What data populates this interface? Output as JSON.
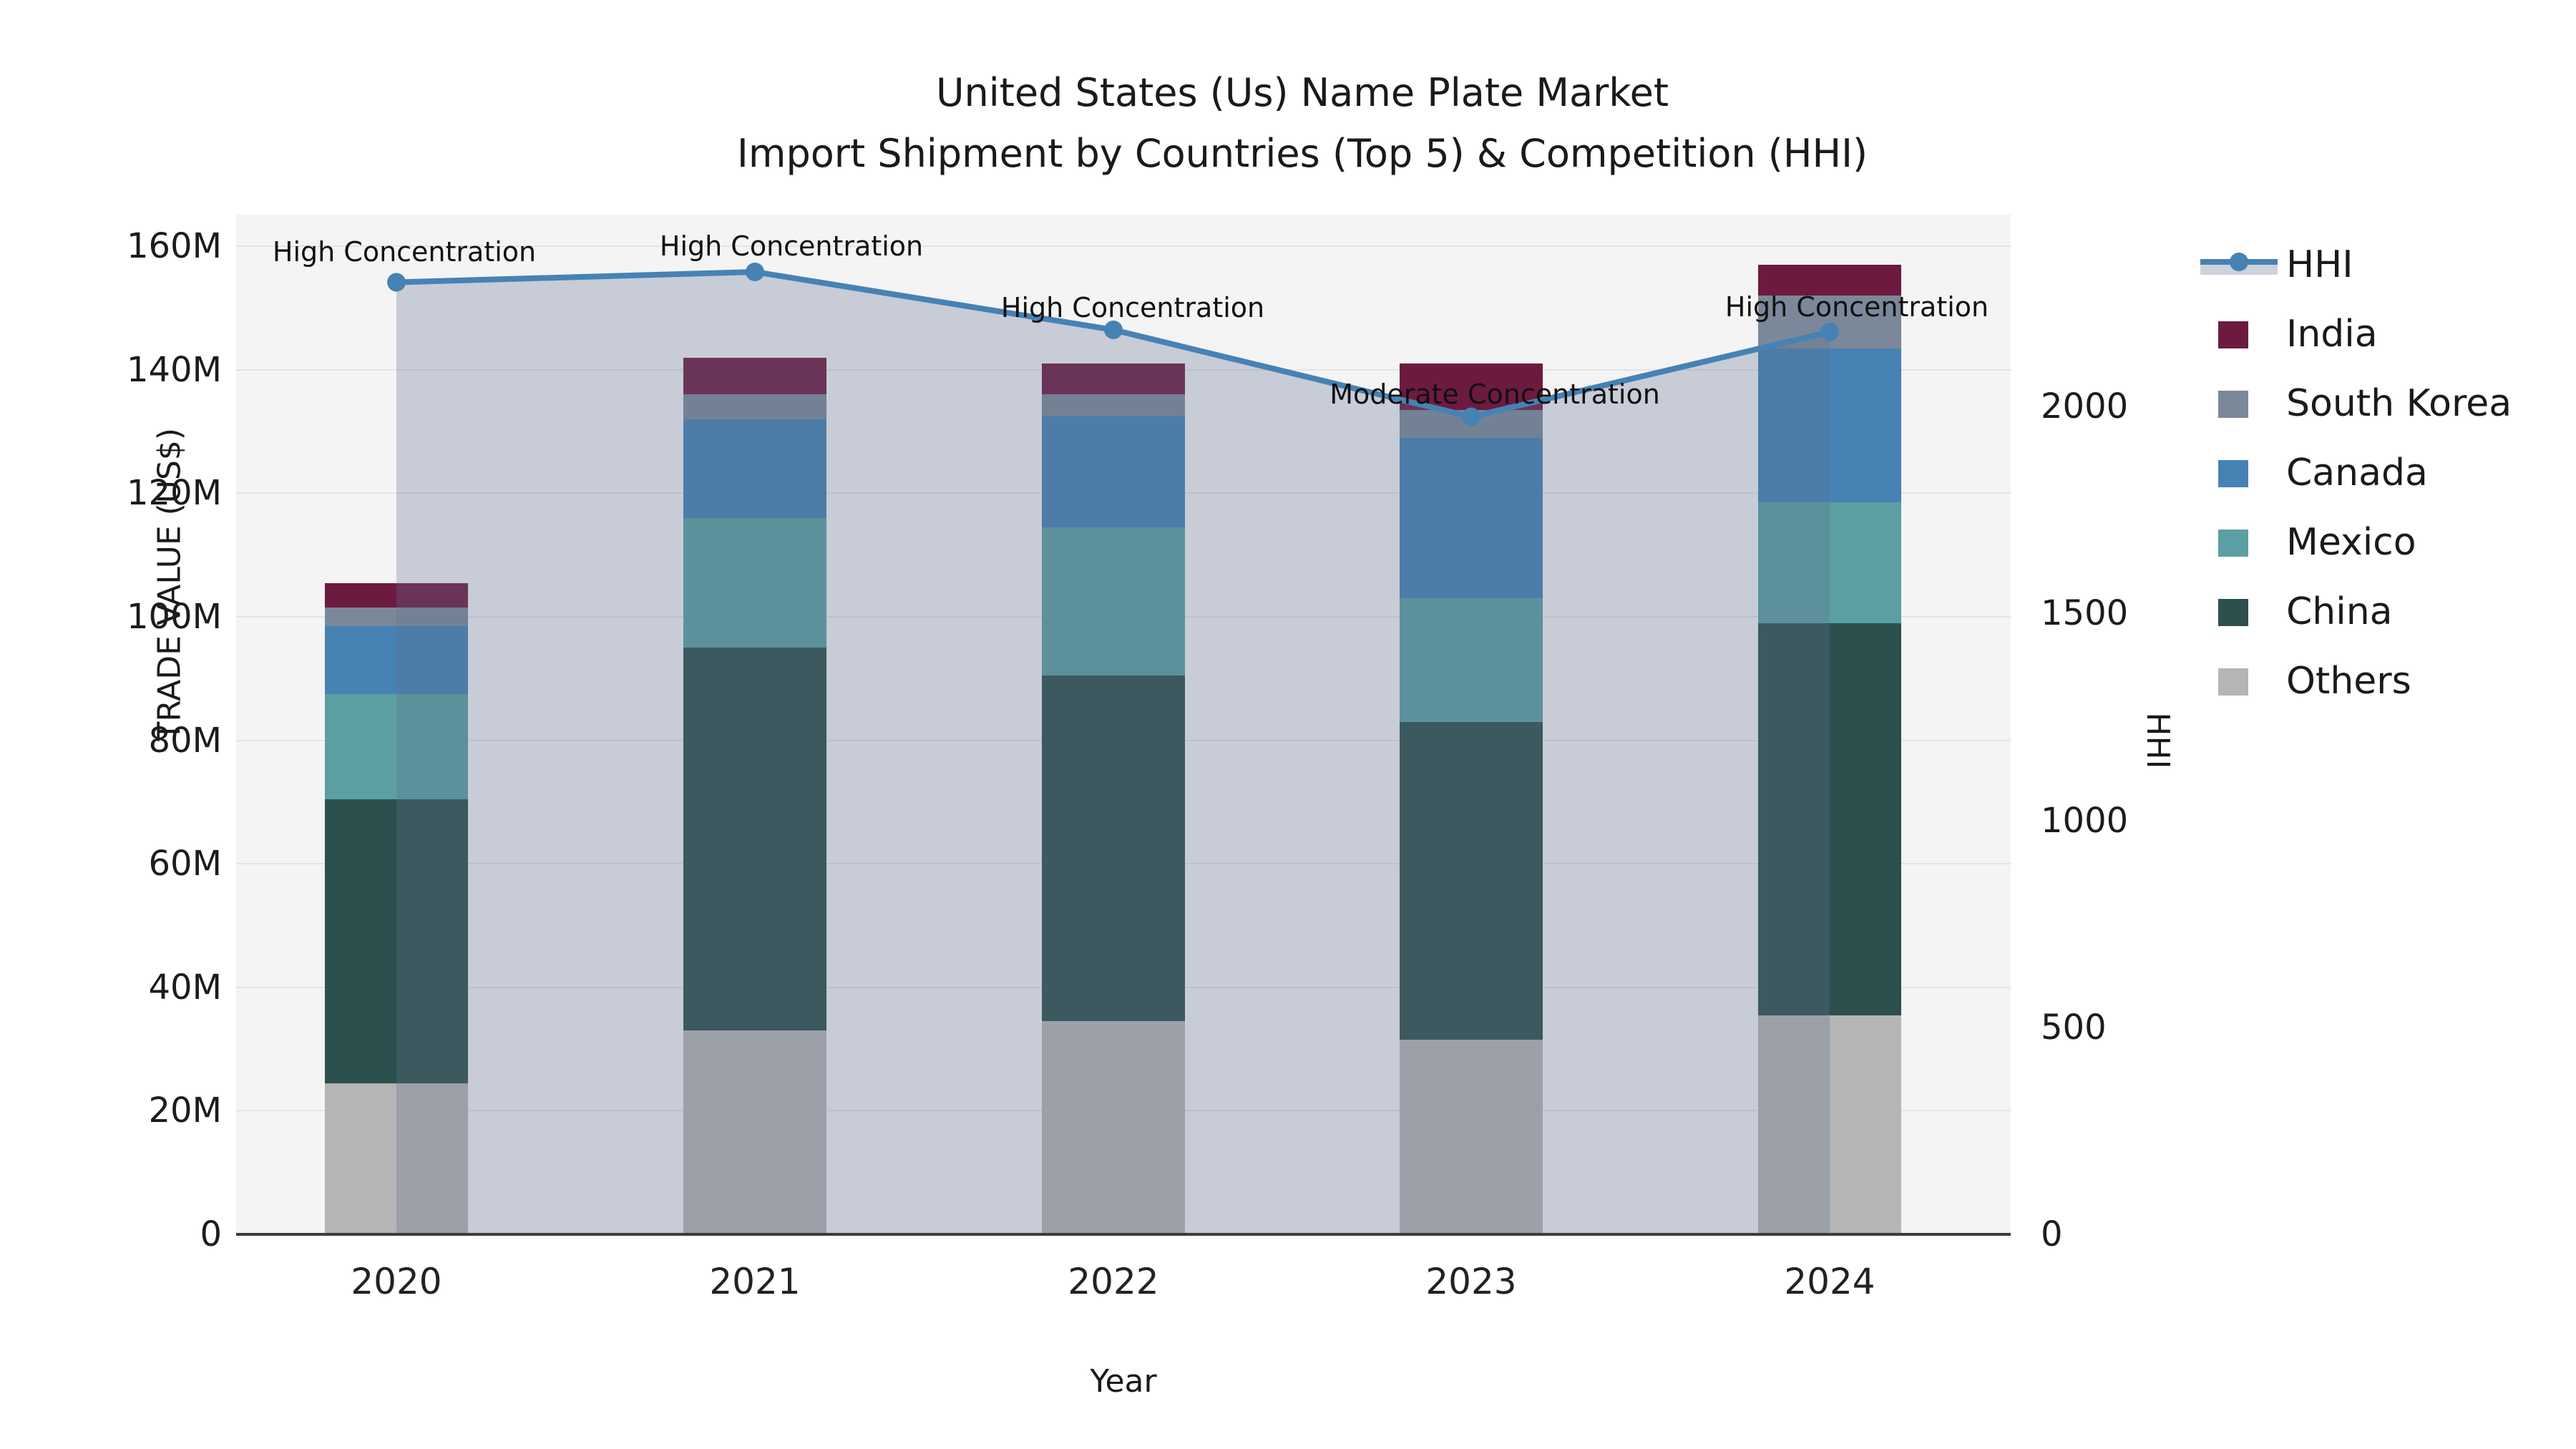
{
  "title": {
    "line1": "United States (Us) Name Plate Market",
    "line2": "Import Shipment by Countries (Top 5) & Competition (HHI)"
  },
  "axes": {
    "y_left": {
      "label": "TRADE VALUE (US$)",
      "ticks": [
        "0",
        "20M",
        "40M",
        "60M",
        "80M",
        "100M",
        "120M",
        "140M",
        "160M"
      ],
      "max_value_m": 165
    },
    "y_right": {
      "label": "HHI",
      "ticks": [
        "0",
        "500",
        "1000",
        "1500",
        "2000"
      ],
      "max_value": 2463
    },
    "x": {
      "label": "Year",
      "ticks": [
        "2020",
        "2021",
        "2022",
        "2023",
        "2024"
      ]
    }
  },
  "legend": {
    "items": [
      {
        "label": "HHI",
        "type": "line",
        "color": "#4682b4"
      },
      {
        "label": "India",
        "type": "patch",
        "color": "#6d1a41"
      },
      {
        "label": "South Korea",
        "type": "patch",
        "color": "#7b8899"
      },
      {
        "label": "Canada",
        "type": "patch",
        "color": "#4682b4"
      },
      {
        "label": "Mexico",
        "type": "patch",
        "color": "#5b9fa2"
      },
      {
        "label": "China",
        "type": "patch",
        "color": "#2d4f4d"
      },
      {
        "label": "Others",
        "type": "patch",
        "color": "#b5b5b5"
      }
    ]
  },
  "chart_data": {
    "type": "bar",
    "subtype": "stacked bars (left axis, trade value US$ millions) + HHI line with shaded area (right axis)",
    "categories": [
      "2020",
      "2021",
      "2022",
      "2023",
      "2024"
    ],
    "bar_unit": "million US$",
    "series": [
      {
        "name": "Others",
        "color": "#b5b5b5",
        "values": [
          24.5,
          33.0,
          34.5,
          31.5,
          35.5
        ]
      },
      {
        "name": "China",
        "color": "#2d4f4d",
        "values": [
          46.0,
          62.0,
          56.0,
          51.5,
          63.5
        ]
      },
      {
        "name": "Mexico",
        "color": "#5b9fa2",
        "values": [
          17.0,
          21.0,
          24.0,
          20.0,
          19.5
        ]
      },
      {
        "name": "Canada",
        "color": "#4682b4",
        "values": [
          11.0,
          16.0,
          18.0,
          26.0,
          25.0
        ]
      },
      {
        "name": "South Korea",
        "color": "#7b8899",
        "values": [
          3.0,
          4.0,
          3.5,
          4.5,
          8.5
        ]
      },
      {
        "name": "India",
        "color": "#6d1a41",
        "values": [
          4.0,
          6.0,
          5.0,
          7.5,
          5.0
        ]
      }
    ],
    "bar_totals_m": [
      105.5,
      142.0,
      141.0,
      141.0,
      157.0
    ],
    "line": {
      "name": "HHI",
      "color": "#4682b4",
      "area_fill": "rgba(97,114,142,0.30)",
      "values": [
        2300,
        2325,
        2185,
        1975,
        2180
      ]
    },
    "annotations": [
      {
        "category": "2020",
        "text": "High Concentration"
      },
      {
        "category": "2021",
        "text": "High Concentration"
      },
      {
        "category": "2022",
        "text": "High Concentration"
      },
      {
        "category": "2023",
        "text": "Moderate Concentration"
      },
      {
        "category": "2024",
        "text": "High Concentration"
      }
    ],
    "ylim_left_m": [
      0,
      165
    ],
    "ylim_right": [
      0,
      2463
    ],
    "grid": "horizontal gridlines every 20M",
    "legend_position": "right, outside plot"
  }
}
